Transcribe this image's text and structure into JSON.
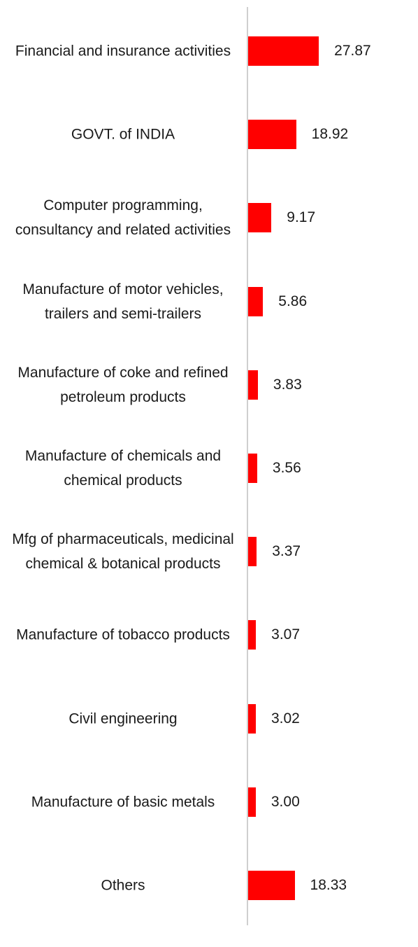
{
  "chart_data": {
    "type": "bar",
    "orientation": "horizontal",
    "categories": [
      "Financial and insurance activities",
      "GOVT. of INDIA",
      "Computer programming, consultancy and related activities",
      "Manufacture of motor vehicles, trailers and semi-trailers",
      "Manufacture of coke and refined petroleum products",
      "Manufacture of chemicals and chemical products",
      "Mfg of pharmaceuticals, medicinal chemical & botanical products",
      "Manufacture of tobacco products",
      "Civil engineering",
      "Manufacture of basic metals",
      "Others"
    ],
    "values": [
      27.87,
      18.92,
      9.17,
      5.86,
      3.83,
      3.56,
      3.37,
      3.07,
      3.02,
      3.0,
      18.33
    ],
    "value_labels": [
      "27.87",
      "18.92",
      "9.17",
      "5.86",
      "3.83",
      "3.56",
      "3.37",
      "3.07",
      "3.02",
      "3.00",
      "18.33"
    ],
    "color": "#ff0000"
  }
}
